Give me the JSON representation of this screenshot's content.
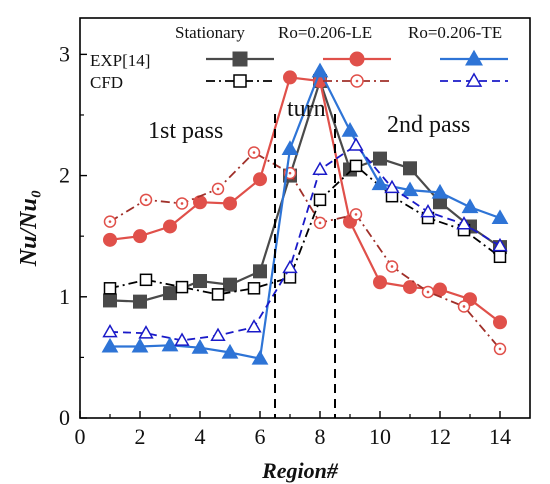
{
  "chart_data": {
    "type": "line",
    "xlabel": "Region#",
    "ylabel": "Nu/Nu₀",
    "xlim": [
      0,
      15
    ],
    "ylim": [
      0,
      3.3
    ],
    "xticks": [
      0,
      2,
      4,
      6,
      8,
      10,
      12,
      14
    ],
    "yticks": [
      0,
      1,
      2,
      3
    ],
    "grid": false,
    "legend_placement": "top",
    "legend": {
      "column_headers": [
        "Stationary",
        "Ro=0.206-LE",
        "Ro=0.206-TE"
      ],
      "row_labels": [
        "EXP[14]",
        "CFD"
      ]
    },
    "annotations": [
      "1st pass",
      "turn",
      "2nd pass"
    ],
    "dividers_x": [
      6.5,
      8.5
    ],
    "colors": {
      "stationary": "#4a4a4a",
      "le": "#e0504a",
      "te": "#2e74d6",
      "stationary_cfd_line": "#000000",
      "le_cfd_line": "#a0302a",
      "te_cfd_line": "#1a1ac8"
    },
    "series": [
      {
        "key": "stationary-exp",
        "color": "#4a4a4a",
        "line_color": "#4a4a4a",
        "dash": "solid",
        "marker": "square",
        "filled": true,
        "x": [
          1,
          2,
          3,
          4,
          5,
          6,
          7,
          8,
          9,
          10,
          11,
          12,
          13,
          14
        ],
        "y": [
          0.97,
          0.96,
          1.03,
          1.13,
          1.1,
          1.21,
          2.0,
          2.78,
          2.05,
          2.14,
          2.06,
          1.78,
          1.58,
          1.41
        ]
      },
      {
        "key": "stationary-cfd",
        "color": "#000000",
        "line_color": "#000000",
        "dash": "dashdot",
        "marker": "square",
        "filled": false,
        "x": [
          1,
          2.2,
          3.4,
          4.6,
          5.8,
          7.0,
          8.0,
          9.2,
          10.4,
          11.6,
          12.8,
          14.0
        ],
        "y": [
          1.07,
          1.14,
          1.08,
          1.02,
          1.07,
          1.16,
          1.8,
          2.08,
          1.83,
          1.65,
          1.55,
          1.33
        ]
      },
      {
        "key": "le-exp",
        "color": "#e0504a",
        "line_color": "#e0504a",
        "dash": "solid",
        "marker": "circle",
        "filled": true,
        "x": [
          1,
          2,
          3,
          4,
          5,
          6,
          7,
          8,
          9,
          10,
          11,
          12,
          13,
          14
        ],
        "y": [
          1.47,
          1.5,
          1.58,
          1.78,
          1.77,
          1.97,
          2.81,
          2.78,
          1.62,
          1.12,
          1.08,
          1.06,
          0.98,
          0.79
        ]
      },
      {
        "key": "le-cfd",
        "color": "#e0504a",
        "line_color": "#a0302a",
        "dash": "dashdot",
        "marker": "circle",
        "filled": false,
        "x": [
          1,
          2.2,
          3.4,
          4.6,
          5.8,
          7.0,
          8.0,
          9.2,
          10.4,
          11.6,
          12.8,
          14.0
        ],
        "y": [
          1.62,
          1.8,
          1.77,
          1.89,
          2.19,
          2.02,
          1.61,
          1.68,
          1.25,
          1.04,
          0.92,
          0.57
        ]
      },
      {
        "key": "te-exp",
        "color": "#2e74d6",
        "line_color": "#2e74d6",
        "dash": "solid",
        "marker": "triangle",
        "filled": true,
        "x": [
          1,
          2,
          3,
          4,
          5,
          6,
          7,
          8,
          9,
          10,
          11,
          12,
          13,
          14
        ],
        "y": [
          0.59,
          0.59,
          0.6,
          0.58,
          0.54,
          0.49,
          2.22,
          2.86,
          2.37,
          1.93,
          1.88,
          1.86,
          1.74,
          1.65
        ]
      },
      {
        "key": "te-cfd",
        "color": "#1a1ac8",
        "line_color": "#1a1ac8",
        "dash": "dashed",
        "marker": "triangle",
        "filled": false,
        "x": [
          1,
          2.2,
          3.4,
          4.6,
          5.8,
          7.0,
          8.0,
          9.2,
          10.4,
          11.6,
          12.8,
          14.0
        ],
        "y": [
          0.71,
          0.7,
          0.64,
          0.68,
          0.75,
          1.24,
          2.05,
          2.25,
          1.9,
          1.7,
          1.6,
          1.42
        ]
      }
    ]
  }
}
